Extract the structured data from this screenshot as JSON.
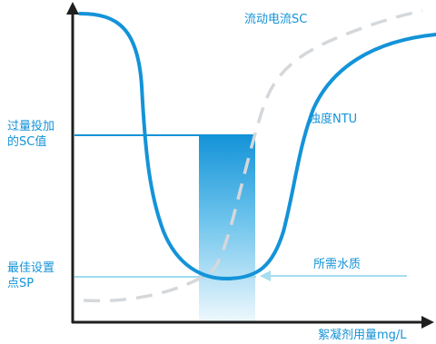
{
  "labels": {
    "streaming_current": "流动电流SC",
    "turbidity": "浊度NTU",
    "overdose_sc_line1": "过量投加",
    "overdose_sc_line2": "的SC值",
    "optimal_sp_line1": "最佳设置",
    "optimal_sp_line2": "点SP",
    "required_quality": "所需水质",
    "x_axis": "絮凝剂用量mg/L"
  },
  "colors": {
    "accent": "#1493d8",
    "turbidity_curve": "#1493d8",
    "sc_curve": "#d5d8db",
    "axes": "#1f1f1f",
    "band_top": "#1493d8",
    "band_bottom": "#e9f6fc",
    "sp_line": "#9fdcef",
    "arrow": "#a7dcf1"
  }
}
